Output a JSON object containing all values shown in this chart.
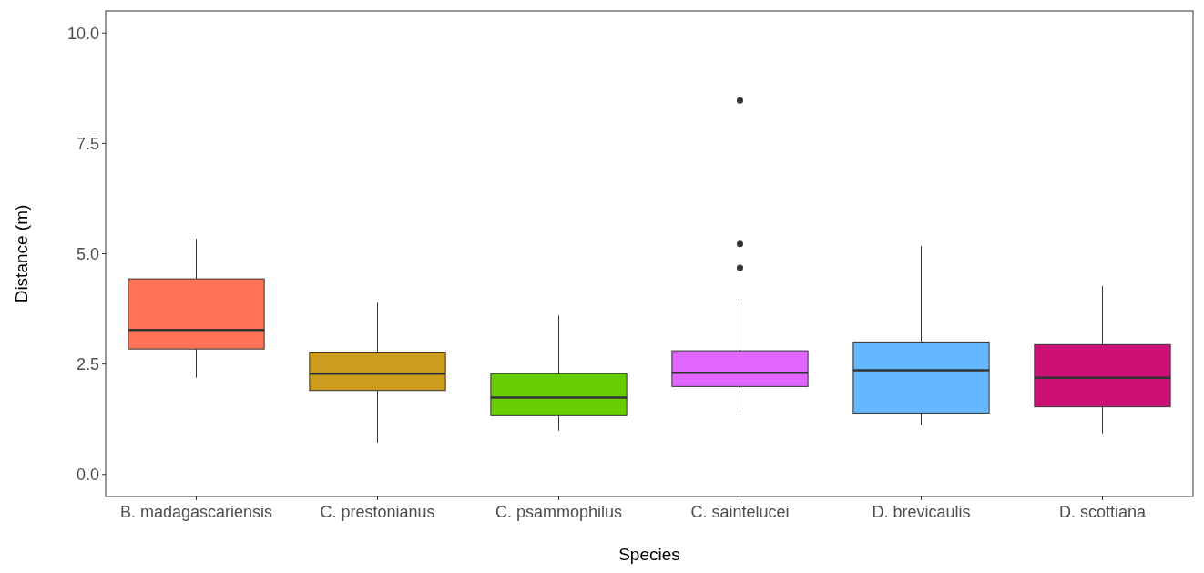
{
  "chart_data": {
    "type": "box",
    "xlabel": "Species",
    "ylabel": "Distance (m)",
    "categories": [
      "B. madagascariensis",
      "C. prestonianus",
      "C. psammophilus",
      "C. saintelucei",
      "D. brevicaulis",
      "D. scottiana"
    ],
    "colors": [
      "#ff7256",
      "#cd9b1d",
      "#66cd00",
      "#e066ff",
      "#63b8ff",
      "#cd1076"
    ],
    "boxes": [
      {
        "low": 2.19,
        "q1": 2.84,
        "median": 3.27,
        "q3": 4.43,
        "high": 5.34
      },
      {
        "low": 0.72,
        "q1": 1.9,
        "median": 2.28,
        "q3": 2.77,
        "high": 3.89
      },
      {
        "low": 0.99,
        "q1": 1.33,
        "median": 1.74,
        "q3": 2.28,
        "high": 3.6
      },
      {
        "low": 1.41,
        "q1": 1.99,
        "median": 2.3,
        "q3": 2.8,
        "high": 3.89,
        "outliers": [
          8.47,
          5.22,
          4.68
        ]
      },
      {
        "low": 1.12,
        "q1": 1.39,
        "median": 2.36,
        "q3": 3.0,
        "high": 5.18
      },
      {
        "low": 0.93,
        "q1": 1.53,
        "median": 2.19,
        "q3": 2.94,
        "high": 4.27
      }
    ],
    "ylim": [
      -0.5,
      10.5
    ],
    "yticks": [
      {
        "value": 0,
        "label": "0.0"
      },
      {
        "value": 2.5,
        "label": "2.5"
      },
      {
        "value": 5,
        "label": "5.0"
      },
      {
        "value": 7.5,
        "label": "7.5"
      },
      {
        "value": 10,
        "label": "10.0"
      }
    ],
    "grid": false
  }
}
